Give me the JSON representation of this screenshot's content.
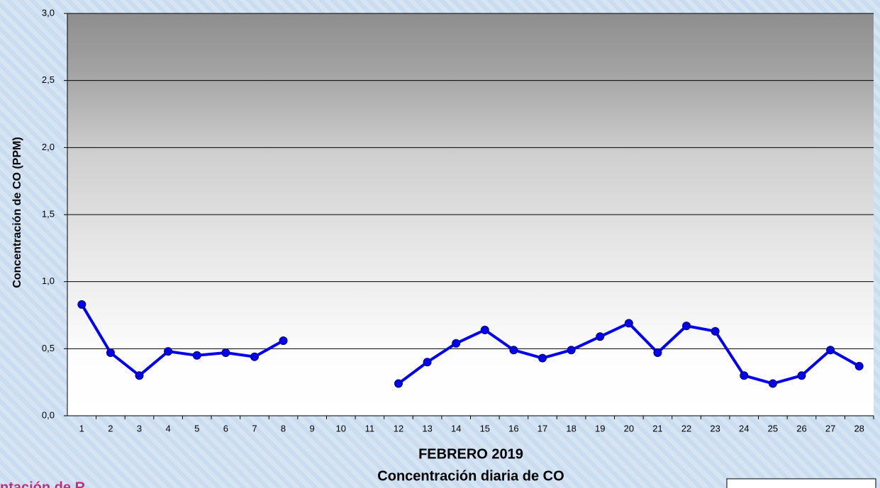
{
  "chart_data": {
    "type": "line",
    "title": "Concentración diaria de CO",
    "x_label": "FEBRERO 2019",
    "y_label": "Concentración de CO (PPM)",
    "annotation": "ntación de R",
    "categories": [
      "1",
      "2",
      "3",
      "4",
      "5",
      "6",
      "7",
      "8",
      "9",
      "10",
      "11",
      "12",
      "13",
      "14",
      "15",
      "16",
      "17",
      "18",
      "19",
      "20",
      "21",
      "22",
      "23",
      "24",
      "25",
      "26",
      "27",
      "28"
    ],
    "series": [
      {
        "name": "CO",
        "color": "#0000ee",
        "values": [
          0.83,
          0.47,
          0.3,
          0.48,
          0.45,
          0.47,
          0.44,
          0.56,
          null,
          null,
          null,
          0.24,
          0.4,
          0.54,
          0.64,
          0.49,
          0.43,
          0.49,
          0.59,
          0.69,
          0.47,
          0.67,
          0.63,
          0.3,
          0.24,
          0.3,
          0.49,
          0.37
        ]
      }
    ],
    "ylim": [
      0,
      3
    ],
    "yticks": [
      {
        "value": 0,
        "label": "0,0"
      },
      {
        "value": 0.5,
        "label": "0,5"
      },
      {
        "value": 1,
        "label": "1,0"
      },
      {
        "value": 1.5,
        "label": "1,5"
      },
      {
        "value": 2,
        "label": "2,0"
      },
      {
        "value": 2.5,
        "label": "2,5"
      },
      {
        "value": 3,
        "label": "3,0"
      }
    ],
    "grid": true
  }
}
